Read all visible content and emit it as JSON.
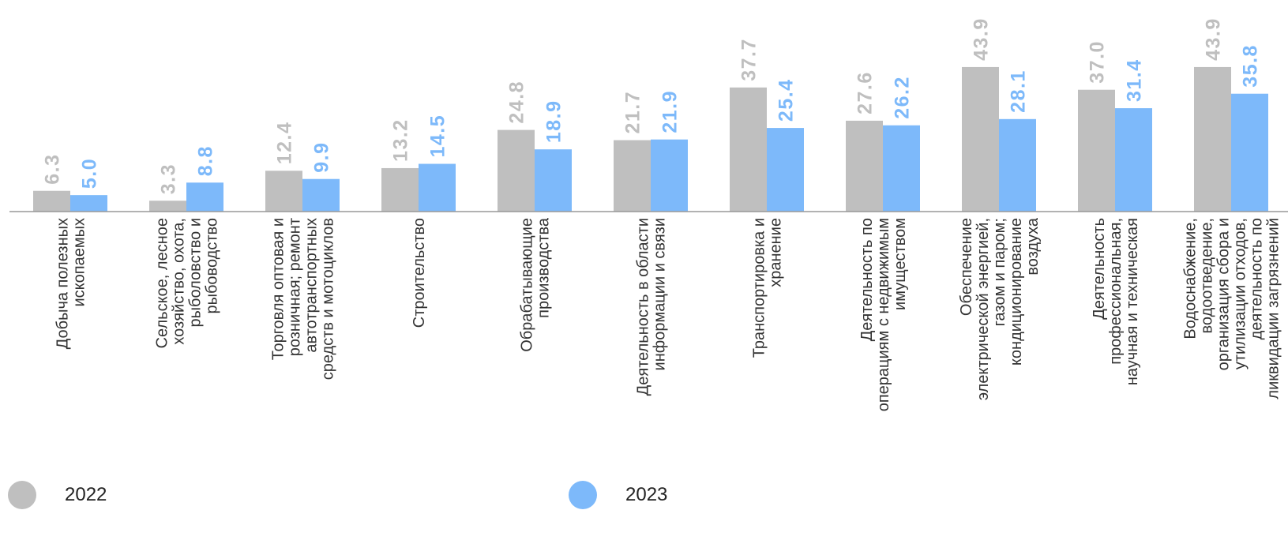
{
  "colors": {
    "s2022": "#BFBFBF",
    "s2023": "#7DB9FA",
    "axis": "#999999",
    "category_text": "#333333"
  },
  "legend": {
    "items": [
      {
        "label": "2022"
      },
      {
        "label": "2023"
      }
    ]
  },
  "chart_data": {
    "type": "bar",
    "title": "",
    "xlabel": "",
    "ylabel": "",
    "ylim": [
      0,
      46
    ],
    "grid": false,
    "legend_position": "bottom",
    "categories": [
      [
        "Добыча полезных",
        "ископаемых"
      ],
      [
        "Сельское, лесное",
        "хозяйство, охота,",
        "рыболовство и",
        "рыбоводство"
      ],
      [
        "Торговля оптовая и",
        "розничная; ремонт",
        "автотранспортных",
        "средств и мотоциклов"
      ],
      [
        "Строительство"
      ],
      [
        "Обрабатывающие",
        "производства"
      ],
      [
        "Деятельность в области",
        "информации и связи"
      ],
      [
        "Транспортировка и",
        "хранение"
      ],
      [
        "Деятельность по",
        "операциям с недвижимым",
        "имуществом"
      ],
      [
        "Обеспечение",
        "электрической энергией,",
        "газом и паром;",
        "кондиционирование",
        "воздуха"
      ],
      [
        "Деятельность",
        "профессиональная,",
        "научная и техническая"
      ],
      [
        "Водоснабжение,",
        "водоотведение,",
        "организация сбора и",
        "утилизации отходов,",
        "деятельность по",
        "ликвидации загрязнений"
      ]
    ],
    "series": [
      {
        "name": "2022",
        "values": [
          6.3,
          3.3,
          12.4,
          13.2,
          24.8,
          21.7,
          37.7,
          27.6,
          43.9,
          37.0,
          43.9
        ],
        "labels": [
          "6.3",
          "3.3",
          "12.4",
          "13.2",
          "24.8",
          "21.7",
          "37.7",
          "27.6",
          "43.9",
          "37.0",
          "43.9"
        ]
      },
      {
        "name": "2023",
        "values": [
          5.0,
          8.8,
          9.9,
          14.5,
          18.9,
          21.9,
          25.4,
          26.2,
          28.1,
          31.4,
          35.8
        ],
        "labels": [
          "5.0",
          "8.8",
          "9.9",
          "14.5",
          "18.9",
          "21.9",
          "25.4",
          "26.2",
          "28.1",
          "31.4",
          "35.8"
        ]
      }
    ]
  }
}
